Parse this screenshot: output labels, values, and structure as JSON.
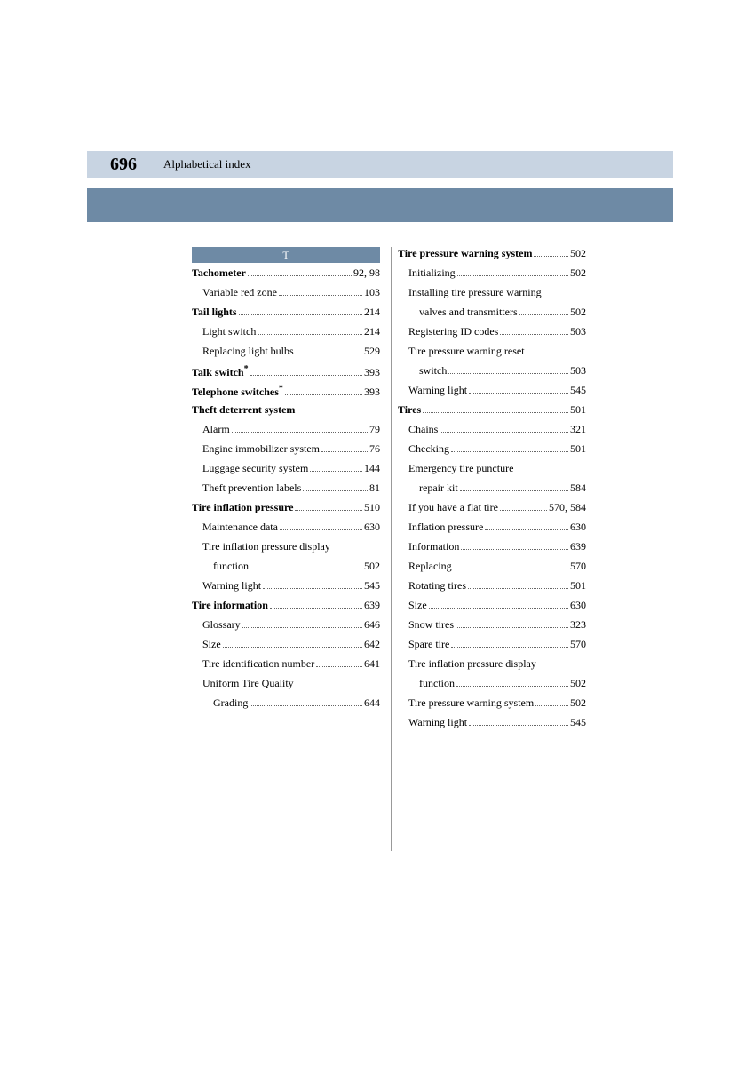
{
  "header": {
    "page_number": "696",
    "title": "Alphabetical index",
    "colors": {
      "header_bg": "#c8d4e2",
      "subbar_bg": "#6e8aa5",
      "section_bg": "#6e8aa5",
      "section_fg": "#ffffff",
      "text": "#000000"
    }
  },
  "section_letter": "T",
  "left_column": [
    {
      "label": "Tachometer",
      "pages": "92, 98",
      "bold": true,
      "indent": 0
    },
    {
      "label": "Variable red zone",
      "pages": "103",
      "bold": false,
      "indent": 1
    },
    {
      "label": "Tail lights",
      "pages": "214",
      "bold": true,
      "indent": 0
    },
    {
      "label": "Light switch",
      "pages": "214",
      "bold": false,
      "indent": 1
    },
    {
      "label": "Replacing light bulbs",
      "pages": "529",
      "bold": false,
      "indent": 1
    },
    {
      "label": "Talk switch",
      "star": true,
      "pages": "393",
      "bold": true,
      "indent": 0
    },
    {
      "label": "Telephone switches",
      "star": true,
      "pages": "393",
      "bold": true,
      "indent": 0
    },
    {
      "label": "Theft deterrent system",
      "pages": "",
      "bold": true,
      "indent": 0,
      "noleader": true
    },
    {
      "label": "Alarm",
      "pages": "79",
      "bold": false,
      "indent": 1
    },
    {
      "label": "Engine immobilizer system",
      "pages": "76",
      "bold": false,
      "indent": 1
    },
    {
      "label": "Luggage security system",
      "pages": "144",
      "bold": false,
      "indent": 1
    },
    {
      "label": "Theft prevention labels",
      "pages": "81",
      "bold": false,
      "indent": 1
    },
    {
      "label": "Tire inflation pressure",
      "pages": "510",
      "bold": true,
      "indent": 0
    },
    {
      "label": "Maintenance data",
      "pages": "630",
      "bold": false,
      "indent": 1
    },
    {
      "label": "Tire inflation pressure display",
      "pages": "",
      "bold": false,
      "indent": 1,
      "noleader": true
    },
    {
      "label": "function",
      "pages": "502",
      "bold": false,
      "indent": 2
    },
    {
      "label": "Warning light",
      "pages": "545",
      "bold": false,
      "indent": 1
    },
    {
      "label": "Tire information",
      "pages": "639",
      "bold": true,
      "indent": 0
    },
    {
      "label": "Glossary",
      "pages": "646",
      "bold": false,
      "indent": 1
    },
    {
      "label": "Size",
      "pages": "642",
      "bold": false,
      "indent": 1
    },
    {
      "label": "Tire identification number",
      "pages": "641",
      "bold": false,
      "indent": 1
    },
    {
      "label": "Uniform Tire Quality",
      "pages": "",
      "bold": false,
      "indent": 1,
      "noleader": true
    },
    {
      "label": "Grading",
      "pages": "644",
      "bold": false,
      "indent": 2
    }
  ],
  "right_column": [
    {
      "label": "Tire pressure warning system",
      "pages": "502",
      "bold": true,
      "indent": 0
    },
    {
      "label": "Initializing",
      "pages": "502",
      "bold": false,
      "indent": 1
    },
    {
      "label": "Installing tire pressure warning",
      "pages": "",
      "bold": false,
      "indent": 1,
      "noleader": true
    },
    {
      "label": "valves and transmitters",
      "pages": "502",
      "bold": false,
      "indent": 2
    },
    {
      "label": "Registering ID codes",
      "pages": "503",
      "bold": false,
      "indent": 1
    },
    {
      "label": "Tire pressure warning reset",
      "pages": "",
      "bold": false,
      "indent": 1,
      "noleader": true
    },
    {
      "label": "switch",
      "pages": "503",
      "bold": false,
      "indent": 2
    },
    {
      "label": "Warning light",
      "pages": "545",
      "bold": false,
      "indent": 1
    },
    {
      "label": "Tires",
      "pages": "501",
      "bold": true,
      "indent": 0
    },
    {
      "label": "Chains",
      "pages": "321",
      "bold": false,
      "indent": 1
    },
    {
      "label": "Checking",
      "pages": "501",
      "bold": false,
      "indent": 1
    },
    {
      "label": "Emergency tire puncture",
      "pages": "",
      "bold": false,
      "indent": 1,
      "noleader": true
    },
    {
      "label": "repair kit",
      "pages": "584",
      "bold": false,
      "indent": 2
    },
    {
      "label": "If you have a flat tire",
      "pages": "570, 584",
      "bold": false,
      "indent": 1
    },
    {
      "label": "Inflation pressure",
      "pages": "630",
      "bold": false,
      "indent": 1
    },
    {
      "label": "Information",
      "pages": "639",
      "bold": false,
      "indent": 1
    },
    {
      "label": "Replacing",
      "pages": "570",
      "bold": false,
      "indent": 1
    },
    {
      "label": "Rotating tires",
      "pages": "501",
      "bold": false,
      "indent": 1
    },
    {
      "label": "Size",
      "pages": "630",
      "bold": false,
      "indent": 1
    },
    {
      "label": "Snow tires",
      "pages": "323",
      "bold": false,
      "indent": 1
    },
    {
      "label": "Spare tire",
      "pages": "570",
      "bold": false,
      "indent": 1
    },
    {
      "label": "Tire inflation pressure display",
      "pages": "",
      "bold": false,
      "indent": 1,
      "noleader": true
    },
    {
      "label": "function",
      "pages": "502",
      "bold": false,
      "indent": 2
    },
    {
      "label": "Tire pressure warning system",
      "pages": "502",
      "bold": false,
      "indent": 1
    },
    {
      "label": "Warning light",
      "pages": "545",
      "bold": false,
      "indent": 1
    }
  ]
}
